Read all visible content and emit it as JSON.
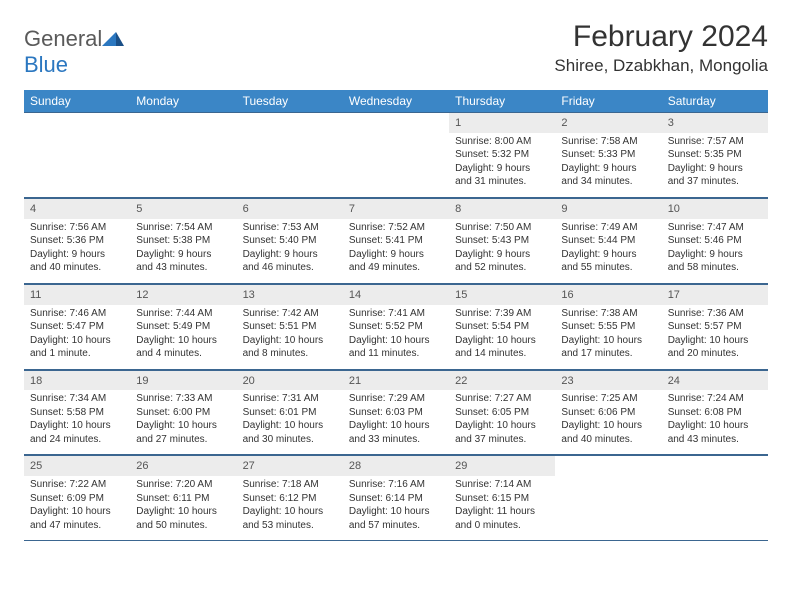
{
  "brand": {
    "name_a": "General",
    "name_b": "Blue"
  },
  "title": "February 2024",
  "location": "Shiree, Dzabkhan, Mongolia",
  "colors": {
    "header_bg": "#3b86c6",
    "header_fg": "#ffffff",
    "rule": "#3b6690",
    "daynum_bg": "#ececec",
    "text": "#333333",
    "brand_gray": "#5a5a5a",
    "brand_blue": "#2b77c0"
  },
  "typography": {
    "title_fontsize": 30,
    "location_fontsize": 17,
    "dow_fontsize": 12,
    "day_fontsize": 10,
    "logo_fontsize": 22
  },
  "dow": [
    "Sunday",
    "Monday",
    "Tuesday",
    "Wednesday",
    "Thursday",
    "Friday",
    "Saturday"
  ],
  "weeks": [
    [
      null,
      null,
      null,
      null,
      {
        "n": "1",
        "sr": "Sunrise: 8:00 AM",
        "ss": "Sunset: 5:32 PM",
        "dl": "Daylight: 9 hours and 31 minutes."
      },
      {
        "n": "2",
        "sr": "Sunrise: 7:58 AM",
        "ss": "Sunset: 5:33 PM",
        "dl": "Daylight: 9 hours and 34 minutes."
      },
      {
        "n": "3",
        "sr": "Sunrise: 7:57 AM",
        "ss": "Sunset: 5:35 PM",
        "dl": "Daylight: 9 hours and 37 minutes."
      }
    ],
    [
      {
        "n": "4",
        "sr": "Sunrise: 7:56 AM",
        "ss": "Sunset: 5:36 PM",
        "dl": "Daylight: 9 hours and 40 minutes."
      },
      {
        "n": "5",
        "sr": "Sunrise: 7:54 AM",
        "ss": "Sunset: 5:38 PM",
        "dl": "Daylight: 9 hours and 43 minutes."
      },
      {
        "n": "6",
        "sr": "Sunrise: 7:53 AM",
        "ss": "Sunset: 5:40 PM",
        "dl": "Daylight: 9 hours and 46 minutes."
      },
      {
        "n": "7",
        "sr": "Sunrise: 7:52 AM",
        "ss": "Sunset: 5:41 PM",
        "dl": "Daylight: 9 hours and 49 minutes."
      },
      {
        "n": "8",
        "sr": "Sunrise: 7:50 AM",
        "ss": "Sunset: 5:43 PM",
        "dl": "Daylight: 9 hours and 52 minutes."
      },
      {
        "n": "9",
        "sr": "Sunrise: 7:49 AM",
        "ss": "Sunset: 5:44 PM",
        "dl": "Daylight: 9 hours and 55 minutes."
      },
      {
        "n": "10",
        "sr": "Sunrise: 7:47 AM",
        "ss": "Sunset: 5:46 PM",
        "dl": "Daylight: 9 hours and 58 minutes."
      }
    ],
    [
      {
        "n": "11",
        "sr": "Sunrise: 7:46 AM",
        "ss": "Sunset: 5:47 PM",
        "dl": "Daylight: 10 hours and 1 minute."
      },
      {
        "n": "12",
        "sr": "Sunrise: 7:44 AM",
        "ss": "Sunset: 5:49 PM",
        "dl": "Daylight: 10 hours and 4 minutes."
      },
      {
        "n": "13",
        "sr": "Sunrise: 7:42 AM",
        "ss": "Sunset: 5:51 PM",
        "dl": "Daylight: 10 hours and 8 minutes."
      },
      {
        "n": "14",
        "sr": "Sunrise: 7:41 AM",
        "ss": "Sunset: 5:52 PM",
        "dl": "Daylight: 10 hours and 11 minutes."
      },
      {
        "n": "15",
        "sr": "Sunrise: 7:39 AM",
        "ss": "Sunset: 5:54 PM",
        "dl": "Daylight: 10 hours and 14 minutes."
      },
      {
        "n": "16",
        "sr": "Sunrise: 7:38 AM",
        "ss": "Sunset: 5:55 PM",
        "dl": "Daylight: 10 hours and 17 minutes."
      },
      {
        "n": "17",
        "sr": "Sunrise: 7:36 AM",
        "ss": "Sunset: 5:57 PM",
        "dl": "Daylight: 10 hours and 20 minutes."
      }
    ],
    [
      {
        "n": "18",
        "sr": "Sunrise: 7:34 AM",
        "ss": "Sunset: 5:58 PM",
        "dl": "Daylight: 10 hours and 24 minutes."
      },
      {
        "n": "19",
        "sr": "Sunrise: 7:33 AM",
        "ss": "Sunset: 6:00 PM",
        "dl": "Daylight: 10 hours and 27 minutes."
      },
      {
        "n": "20",
        "sr": "Sunrise: 7:31 AM",
        "ss": "Sunset: 6:01 PM",
        "dl": "Daylight: 10 hours and 30 minutes."
      },
      {
        "n": "21",
        "sr": "Sunrise: 7:29 AM",
        "ss": "Sunset: 6:03 PM",
        "dl": "Daylight: 10 hours and 33 minutes."
      },
      {
        "n": "22",
        "sr": "Sunrise: 7:27 AM",
        "ss": "Sunset: 6:05 PM",
        "dl": "Daylight: 10 hours and 37 minutes."
      },
      {
        "n": "23",
        "sr": "Sunrise: 7:25 AM",
        "ss": "Sunset: 6:06 PM",
        "dl": "Daylight: 10 hours and 40 minutes."
      },
      {
        "n": "24",
        "sr": "Sunrise: 7:24 AM",
        "ss": "Sunset: 6:08 PM",
        "dl": "Daylight: 10 hours and 43 minutes."
      }
    ],
    [
      {
        "n": "25",
        "sr": "Sunrise: 7:22 AM",
        "ss": "Sunset: 6:09 PM",
        "dl": "Daylight: 10 hours and 47 minutes."
      },
      {
        "n": "26",
        "sr": "Sunrise: 7:20 AM",
        "ss": "Sunset: 6:11 PM",
        "dl": "Daylight: 10 hours and 50 minutes."
      },
      {
        "n": "27",
        "sr": "Sunrise: 7:18 AM",
        "ss": "Sunset: 6:12 PM",
        "dl": "Daylight: 10 hours and 53 minutes."
      },
      {
        "n": "28",
        "sr": "Sunrise: 7:16 AM",
        "ss": "Sunset: 6:14 PM",
        "dl": "Daylight: 10 hours and 57 minutes."
      },
      {
        "n": "29",
        "sr": "Sunrise: 7:14 AM",
        "ss": "Sunset: 6:15 PM",
        "dl": "Daylight: 11 hours and 0 minutes."
      },
      null,
      null
    ]
  ]
}
